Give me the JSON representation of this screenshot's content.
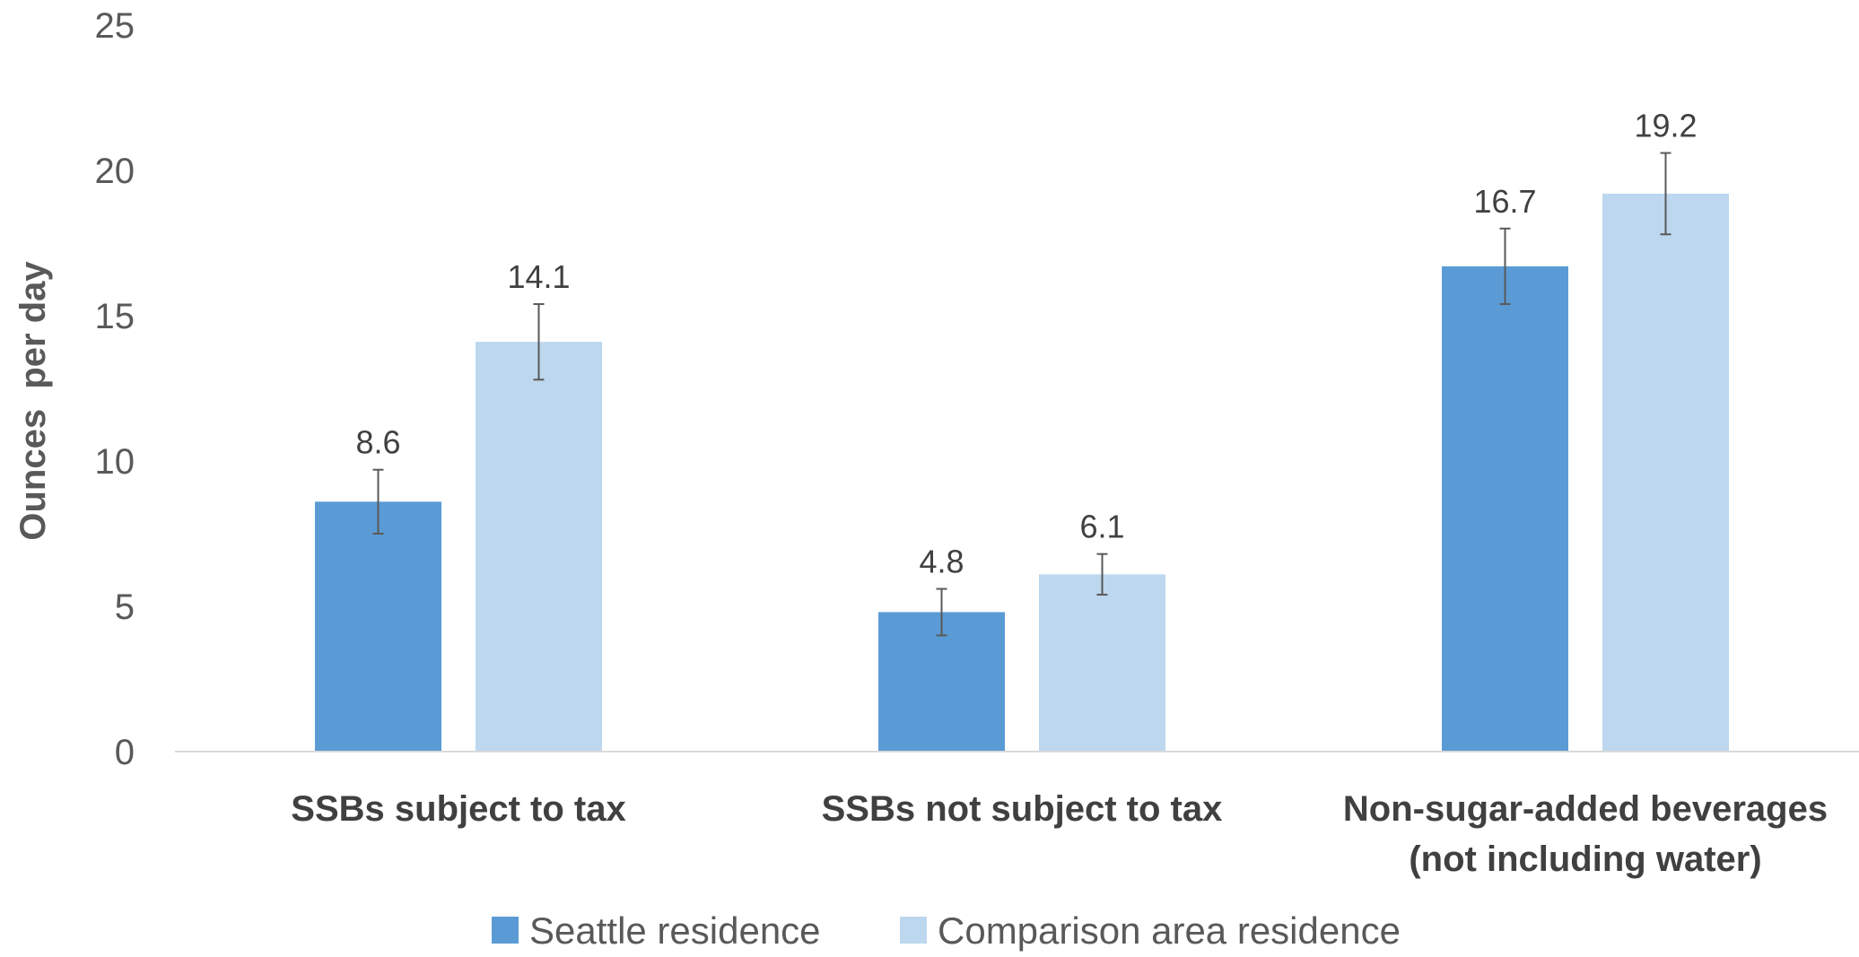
{
  "chart_data": {
    "type": "bar",
    "title": "",
    "xlabel": "",
    "ylabel": "Ounces  per day",
    "ylim": [
      0,
      25
    ],
    "yticks": [
      0,
      5,
      10,
      15,
      20,
      25
    ],
    "grid": false,
    "legend_position": "bottom",
    "categories": [
      [
        "SSBs subject to tax"
      ],
      [
        "SSBs not subject to tax"
      ],
      [
        "Non-sugar-added beverages",
        "(not including water)"
      ]
    ],
    "series": [
      {
        "name": "Seattle residence",
        "color": "#5B9BD5",
        "values": [
          8.6,
          4.8,
          16.7
        ],
        "error_low": [
          7.5,
          4.0,
          15.4
        ],
        "error_high": [
          9.7,
          5.6,
          18.0
        ]
      },
      {
        "name": "Comparison area residence",
        "color": "#BDD7EE",
        "values": [
          14.1,
          6.1,
          19.2
        ],
        "error_low": [
          12.8,
          5.4,
          17.8
        ],
        "error_high": [
          15.4,
          6.8,
          20.6
        ]
      }
    ],
    "data_labels": [
      [
        "8.6",
        "4.8",
        "16.7"
      ],
      [
        "14.1",
        "6.1",
        "19.2"
      ]
    ],
    "axis_color": "#D9D9D9",
    "error_bar_color": "#595959"
  }
}
